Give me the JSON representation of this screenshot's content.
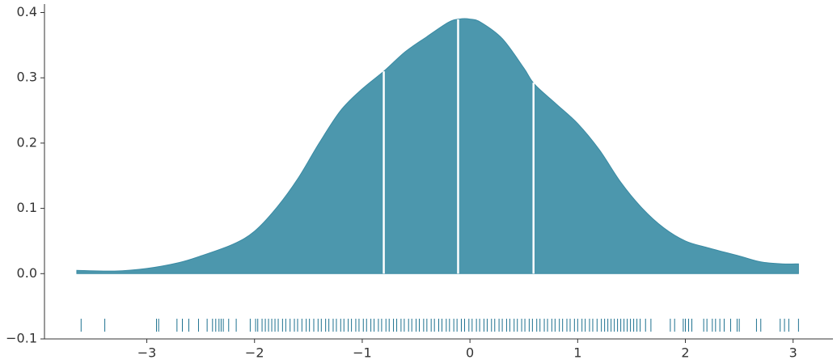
{
  "chart_data": {
    "type": "kde",
    "x": [
      -3.65,
      -3.3,
      -3.0,
      -2.7,
      -2.5,
      -2.2,
      -2.0,
      -1.8,
      -1.6,
      -1.4,
      -1.2,
      -1.0,
      -0.8,
      -0.6,
      -0.4,
      -0.2,
      -0.1,
      0.0,
      0.1,
      0.3,
      0.5,
      0.6,
      0.8,
      1.0,
      1.2,
      1.4,
      1.6,
      1.8,
      2.0,
      2.2,
      2.5,
      2.7,
      2.9,
      3.05
    ],
    "values": [
      0.005,
      0.004,
      0.008,
      0.017,
      0.027,
      0.045,
      0.065,
      0.1,
      0.145,
      0.2,
      0.25,
      0.283,
      0.31,
      0.34,
      0.363,
      0.385,
      0.39,
      0.39,
      0.385,
      0.36,
      0.315,
      0.29,
      0.26,
      0.23,
      0.19,
      0.14,
      0.1,
      0.07,
      0.05,
      0.04,
      0.027,
      0.018,
      0.015,
      0.015
    ],
    "color": "#4c97ad",
    "quartiles": [
      -0.8,
      -0.11,
      0.59
    ],
    "quartile_color": "#ffffff",
    "rug": [
      -3.61,
      -3.39,
      -2.91,
      -2.89,
      -2.72,
      -2.67,
      -2.61,
      -2.52,
      -2.44,
      -2.39,
      -2.36,
      -2.33,
      -2.31,
      -2.29,
      -2.24,
      -2.17,
      -2.04,
      -1.99,
      -1.97,
      -1.93,
      -1.9,
      -1.87,
      -1.84,
      -1.81,
      -1.78,
      -1.74,
      -1.71,
      -1.67,
      -1.63,
      -1.6,
      -1.56,
      -1.52,
      -1.49,
      -1.45,
      -1.41,
      -1.38,
      -1.34,
      -1.31,
      -1.27,
      -1.24,
      -1.2,
      -1.17,
      -1.13,
      -1.1,
      -1.06,
      -1.03,
      -0.99,
      -0.96,
      -0.92,
      -0.89,
      -0.85,
      -0.82,
      -0.78,
      -0.75,
      -0.71,
      -0.68,
      -0.64,
      -0.61,
      -0.57,
      -0.54,
      -0.5,
      -0.47,
      -0.43,
      -0.4,
      -0.36,
      -0.33,
      -0.29,
      -0.26,
      -0.22,
      -0.19,
      -0.15,
      -0.12,
      -0.08,
      -0.05,
      -0.01,
      0.02,
      0.06,
      0.09,
      0.13,
      0.16,
      0.2,
      0.23,
      0.27,
      0.3,
      0.34,
      0.37,
      0.41,
      0.44,
      0.48,
      0.51,
      0.55,
      0.58,
      0.62,
      0.65,
      0.69,
      0.72,
      0.76,
      0.79,
      0.83,
      0.86,
      0.9,
      0.93,
      0.97,
      1.0,
      1.04,
      1.07,
      1.11,
      1.14,
      1.18,
      1.22,
      1.25,
      1.28,
      1.31,
      1.34,
      1.37,
      1.4,
      1.43,
      1.46,
      1.49,
      1.52,
      1.55,
      1.58,
      1.63,
      1.68,
      1.86,
      1.9,
      1.98,
      2.0,
      2.03,
      2.06,
      2.17,
      2.2,
      2.25,
      2.28,
      2.32,
      2.36,
      2.42,
      2.48,
      2.5,
      2.66,
      2.7,
      2.88,
      2.92,
      2.96,
      3.05
    ],
    "rug_color": "#1f7290",
    "xlim": [
      -3.95,
      3.37
    ],
    "ylim": [
      -0.1,
      0.413
    ],
    "xticks": [
      {
        "value": -3,
        "label": "−3"
      },
      {
        "value": -2,
        "label": "−2"
      },
      {
        "value": -1,
        "label": "−1"
      },
      0,
      1,
      2,
      3
    ],
    "yticks": [
      {
        "value": -0.1,
        "label": "−0.1"
      },
      {
        "value": 0,
        "label": "0.0"
      },
      0.1,
      0.2,
      0.3,
      0.4
    ]
  }
}
